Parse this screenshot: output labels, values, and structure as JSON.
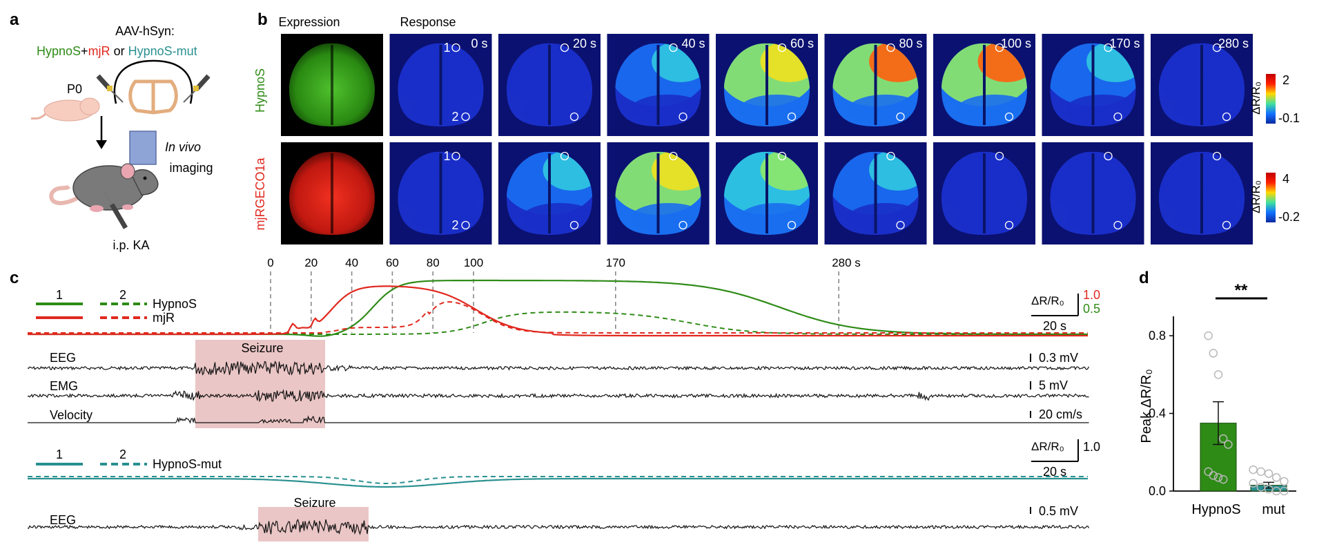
{
  "panels": {
    "a": "a",
    "b": "b",
    "c": "c",
    "d": "d"
  },
  "colors": {
    "hypnos": "#2e8b16",
    "mjr": "#e0281e",
    "mut": "#2a9090",
    "seizure": "#ebc6c6",
    "image_bg": "#0b1170"
  },
  "panel_a": {
    "construct": "AAV-hSyn:",
    "hypnos": "HypnoS",
    "plus": "+",
    "mjr": "mjR",
    "or": " or ",
    "mut": "HypnoS-mut",
    "age": "P0",
    "imaging_italic": "In vivo",
    "imaging": "imaging",
    "injection": "i.p. KA"
  },
  "panel_b": {
    "expression_label": "Expression",
    "response_label": "Response",
    "times": [
      "0 s",
      "20 s",
      "40 s",
      "60 s",
      "80 s",
      "100 s",
      "170 s",
      "280 s"
    ],
    "rows": [
      {
        "label": "HypnoS",
        "colorbar_label": "ΔR/R₀",
        "cb_max": "2",
        "cb_min": "-0.1",
        "activity": [
          0.02,
          0.05,
          0.35,
          0.75,
          0.9,
          0.95,
          0.4,
          0.05
        ]
      },
      {
        "label": "mjRGECO1a",
        "colorbar_label": "ΔR/R₀",
        "cb_max": "4",
        "cb_min": "-0.2",
        "activity": [
          0.02,
          0.4,
          0.8,
          0.7,
          0.35,
          0.08,
          0.03,
          0.02
        ]
      }
    ],
    "roi_labels": [
      "1",
      "2"
    ]
  },
  "panel_c": {
    "time_marks": [
      {
        "t": 0,
        "label": "0"
      },
      {
        "t": 20,
        "label": "20"
      },
      {
        "t": 40,
        "label": "40"
      },
      {
        "t": 60,
        "label": "60"
      },
      {
        "t": 80,
        "label": "80"
      },
      {
        "t": 100,
        "label": "100"
      },
      {
        "t": 170,
        "label": "170"
      },
      {
        "t": 280,
        "label": "280 s"
      }
    ],
    "legend": {
      "roi1": "1",
      "roi2": "2",
      "hypnos": "HypnoS",
      "mjr": "mjR"
    },
    "scale_top": {
      "unit": "ΔR/R₀",
      "mjr_value": "1.0",
      "hypnos_value": "0.5",
      "time": "20 s"
    },
    "seizure_label": "Seizure",
    "eeg_label": "EEG",
    "emg_label": "EMG",
    "velocity_label": "Velocity",
    "scale_eeg": "0.3 mV",
    "scale_emg": "5 mV",
    "scale_velocity": "20 cm/s",
    "legend_mut": {
      "roi1": "1",
      "roi2": "2",
      "name": "HypnoS-mut"
    },
    "scale_mut": {
      "unit": "ΔR/R₀",
      "value": "1.0",
      "time": "20 s"
    },
    "seizure2_label": "Seizure",
    "eeg2_label": "EEG",
    "scale_eeg2": "0.5 mV"
  },
  "panel_d": {
    "ylabel": "Peak ΔR/R₀",
    "significance": "**",
    "chart_data": {
      "type": "bar",
      "categories": [
        "HypnoS",
        "mut"
      ],
      "values": [
        0.35,
        0.03
      ],
      "errors": [
        0.11,
        0.015
      ],
      "points": [
        [
          0.8,
          0.71,
          0.6,
          0.27,
          0.24,
          0.1,
          0.08,
          0.07,
          0.06
        ],
        [
          0.11,
          0.1,
          0.09,
          0.07,
          0.05,
          0.04,
          0.02,
          0.01,
          0.0,
          0.0
        ]
      ],
      "ylim": [
        0,
        0.9
      ],
      "yticks": [
        "0.0",
        "0.4",
        "0.8"
      ],
      "xlabel": "",
      "ylabel": "Peak ΔR/R₀"
    }
  }
}
